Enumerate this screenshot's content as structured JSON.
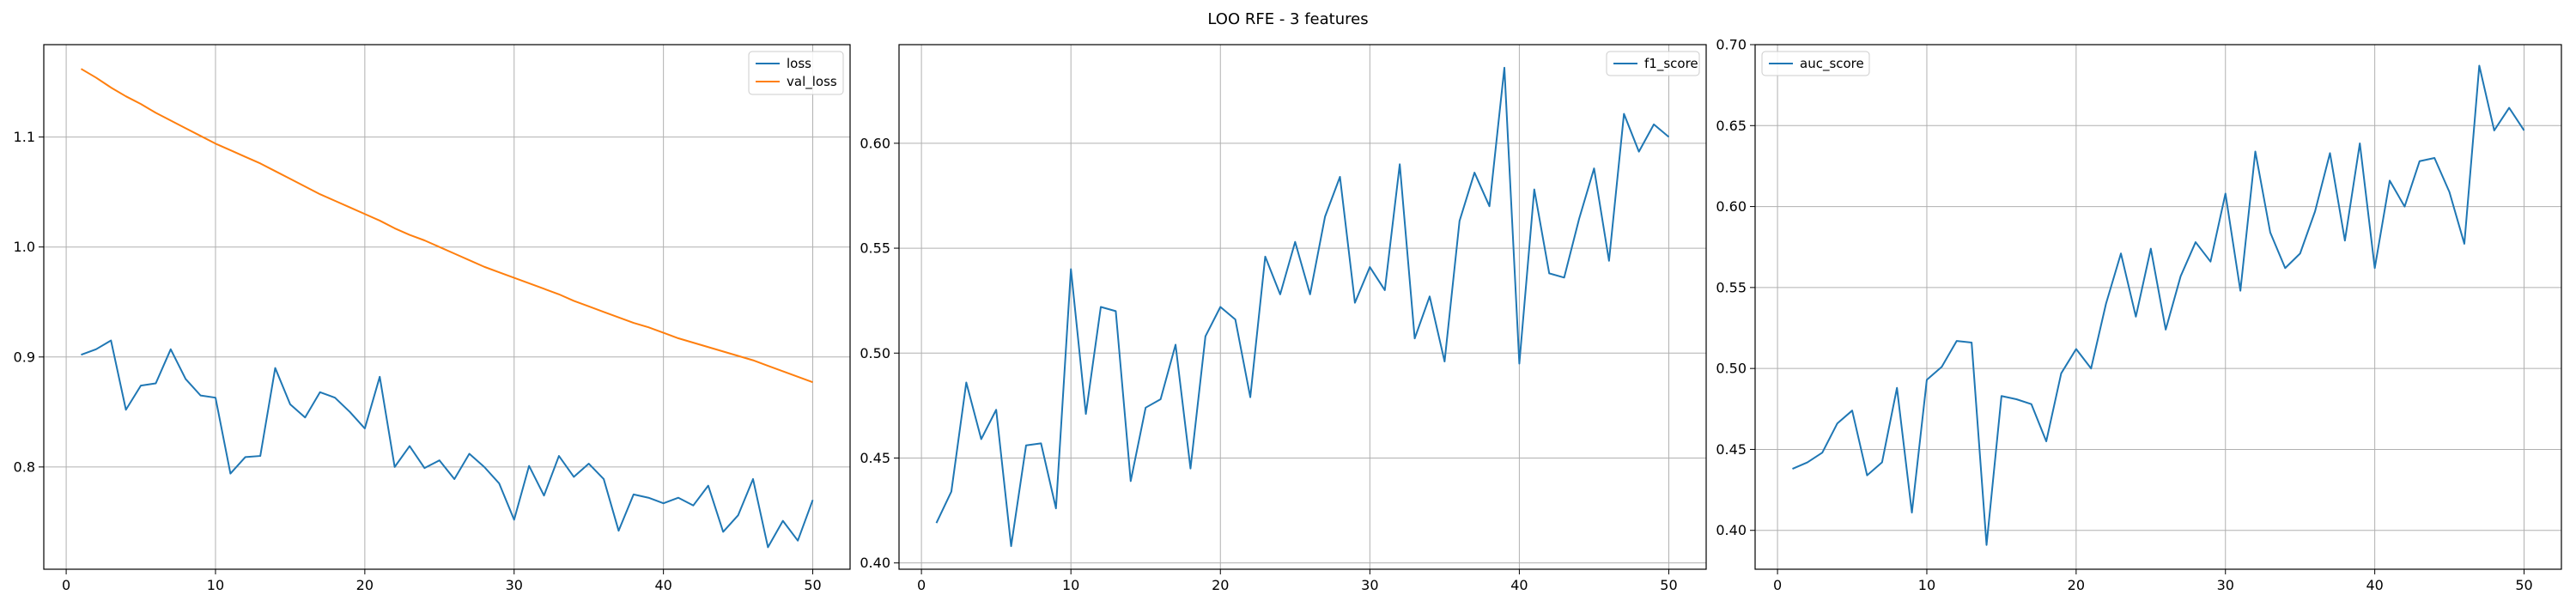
{
  "figure": {
    "suptitle": "LOO RFE - 3 features"
  },
  "colors": {
    "blue": "#1f77b4",
    "orange": "#ff7f0e",
    "grid": "#b0b0b0"
  },
  "chart_data": [
    {
      "type": "line",
      "grid": true,
      "legend_position": "top-right",
      "xlim": [
        -1.5,
        52.5
      ],
      "ylim": [
        0.707,
        1.184
      ],
      "xticks": [
        0,
        10,
        20,
        30,
        40,
        50
      ],
      "yticks": [
        0.8,
        0.9,
        1.0,
        1.1
      ],
      "ytick_labels": [
        "0.8",
        "0.9",
        "1.0",
        "1.1"
      ],
      "x": [
        1,
        2,
        3,
        4,
        5,
        6,
        7,
        8,
        9,
        10,
        11,
        12,
        13,
        14,
        15,
        16,
        17,
        18,
        19,
        20,
        21,
        22,
        23,
        24,
        25,
        26,
        27,
        28,
        29,
        30,
        31,
        32,
        33,
        34,
        35,
        36,
        37,
        38,
        39,
        40,
        41,
        42,
        43,
        44,
        45,
        46,
        47,
        48,
        49,
        50
      ],
      "series": [
        {
          "name": "loss",
          "color": "#1f77b4",
          "values": [
            0.902,
            0.907,
            0.915,
            0.852,
            0.874,
            0.876,
            0.907,
            0.88,
            0.865,
            0.863,
            0.794,
            0.809,
            0.81,
            0.89,
            0.857,
            0.845,
            0.868,
            0.863,
            0.85,
            0.835,
            0.882,
            0.8,
            0.819,
            0.799,
            0.806,
            0.789,
            0.812,
            0.8,
            0.785,
            0.752,
            0.801,
            0.774,
            0.81,
            0.791,
            0.803,
            0.789,
            0.742,
            0.775,
            0.772,
            0.767,
            0.772,
            0.765,
            0.783,
            0.741,
            0.756,
            0.789,
            0.727,
            0.751,
            0.733,
            0.77
          ]
        },
        {
          "name": "val_loss",
          "color": "#ff7f0e",
          "values": [
            1.162,
            1.154,
            1.145,
            1.137,
            1.13,
            1.122,
            1.115,
            1.108,
            1.101,
            1.094,
            1.088,
            1.082,
            1.076,
            1.069,
            1.062,
            1.055,
            1.048,
            1.042,
            1.036,
            1.03,
            1.024,
            1.017,
            1.011,
            1.006,
            1.0,
            0.994,
            0.988,
            0.982,
            0.977,
            0.972,
            0.967,
            0.962,
            0.957,
            0.951,
            0.946,
            0.941,
            0.936,
            0.931,
            0.927,
            0.922,
            0.917,
            0.913,
            0.909,
            0.905,
            0.901,
            0.897,
            0.892,
            0.887,
            0.882,
            0.877
          ]
        }
      ]
    },
    {
      "type": "line",
      "grid": true,
      "legend_position": "top-right",
      "xlim": [
        -1.5,
        52.5
      ],
      "ylim": [
        0.397,
        0.647
      ],
      "xticks": [
        0,
        10,
        20,
        30,
        40,
        50
      ],
      "yticks": [
        0.4,
        0.45,
        0.5,
        0.55,
        0.6
      ],
      "ytick_labels": [
        "0.40",
        "0.45",
        "0.50",
        "0.55",
        "0.60"
      ],
      "x": [
        1,
        2,
        3,
        4,
        5,
        6,
        7,
        8,
        9,
        10,
        11,
        12,
        13,
        14,
        15,
        16,
        17,
        18,
        19,
        20,
        21,
        22,
        23,
        24,
        25,
        26,
        27,
        28,
        29,
        30,
        31,
        32,
        33,
        34,
        35,
        36,
        37,
        38,
        39,
        40,
        41,
        42,
        43,
        44,
        45,
        46,
        47,
        48,
        49,
        50
      ],
      "series": [
        {
          "name": "f1_score",
          "color": "#1f77b4",
          "values": [
            0.419,
            0.434,
            0.486,
            0.459,
            0.473,
            0.408,
            0.456,
            0.457,
            0.426,
            0.54,
            0.471,
            0.522,
            0.52,
            0.439,
            0.474,
            0.478,
            0.504,
            0.445,
            0.508,
            0.522,
            0.516,
            0.479,
            0.546,
            0.528,
            0.553,
            0.528,
            0.565,
            0.584,
            0.524,
            0.541,
            0.53,
            0.59,
            0.507,
            0.527,
            0.496,
            0.563,
            0.586,
            0.57,
            0.636,
            0.495,
            0.578,
            0.538,
            0.536,
            0.564,
            0.588,
            0.544,
            0.614,
            0.596,
            0.609,
            0.603
          ]
        }
      ]
    },
    {
      "type": "line",
      "grid": true,
      "legend_position": "top-left",
      "xlim": [
        -1.5,
        52.5
      ],
      "ylim": [
        0.376,
        0.7
      ],
      "xticks": [
        0,
        10,
        20,
        30,
        40,
        50
      ],
      "yticks": [
        0.4,
        0.45,
        0.5,
        0.55,
        0.6,
        0.65,
        0.7
      ],
      "ytick_labels": [
        "0.40",
        "0.45",
        "0.50",
        "0.55",
        "0.60",
        "0.65",
        "0.70"
      ],
      "x": [
        1,
        2,
        3,
        4,
        5,
        6,
        7,
        8,
        9,
        10,
        11,
        12,
        13,
        14,
        15,
        16,
        17,
        18,
        19,
        20,
        21,
        22,
        23,
        24,
        25,
        26,
        27,
        28,
        29,
        30,
        31,
        32,
        33,
        34,
        35,
        36,
        37,
        38,
        39,
        40,
        41,
        42,
        43,
        44,
        45,
        46,
        47,
        48,
        49,
        50
      ],
      "series": [
        {
          "name": "auc_score",
          "color": "#1f77b4",
          "values": [
            0.438,
            0.442,
            0.448,
            0.466,
            0.474,
            0.434,
            0.442,
            0.488,
            0.411,
            0.493,
            0.501,
            0.517,
            0.516,
            0.391,
            0.483,
            0.481,
            0.478,
            0.455,
            0.497,
            0.512,
            0.5,
            0.54,
            0.571,
            0.532,
            0.574,
            0.524,
            0.557,
            0.578,
            0.566,
            0.608,
            0.548,
            0.634,
            0.584,
            0.562,
            0.571,
            0.597,
            0.633,
            0.579,
            0.639,
            0.562,
            0.616,
            0.6,
            0.628,
            0.63,
            0.609,
            0.577,
            0.687,
            0.647,
            0.661,
            0.647
          ]
        }
      ]
    }
  ]
}
